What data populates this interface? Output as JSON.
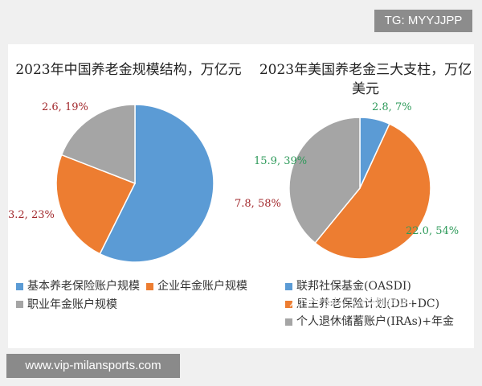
{
  "badge": "TG: MYYJJPP",
  "footer": "www.vip-milansports.com",
  "watermark": "知乎 @13个精算师",
  "chart_data": [
    {
      "type": "pie",
      "title": "2023年中国养老金规模结构，万亿元",
      "slices": [
        {
          "name": "基本养老保险账户规模",
          "value": 7.8,
          "percent": 58,
          "label": "7.8, 58%",
          "color": "#5b9bd5"
        },
        {
          "name": "企业年金账户规模",
          "value": 3.2,
          "percent": 23,
          "label": "3.2, 23%",
          "color": "#ed7d31"
        },
        {
          "name": "职业年金账户规模",
          "value": 2.6,
          "percent": 19,
          "label": "2.6, 19%",
          "color": "#a5a5a5"
        }
      ],
      "label_color": "#a2282c",
      "legend_position": "bottom"
    },
    {
      "type": "pie",
      "title": "2023年美国养老金三大支柱，万亿美元",
      "slices": [
        {
          "name": "联邦社保基金(OASDI)",
          "value": 2.8,
          "percent": 7,
          "label": "2.8, 7%",
          "color": "#5b9bd5"
        },
        {
          "name": "雇主养老保险计划(DB+DC)",
          "value": 22.0,
          "percent": 54,
          "label": "22.0, 54%",
          "color": "#ed7d31"
        },
        {
          "name": "个人退休储蓄账户(IRAs)+年金",
          "value": 15.9,
          "percent": 39,
          "label": "15.9, 39%",
          "color": "#a5a5a5"
        }
      ],
      "label_color": "#2e9a5a",
      "legend_position": "bottom"
    }
  ]
}
